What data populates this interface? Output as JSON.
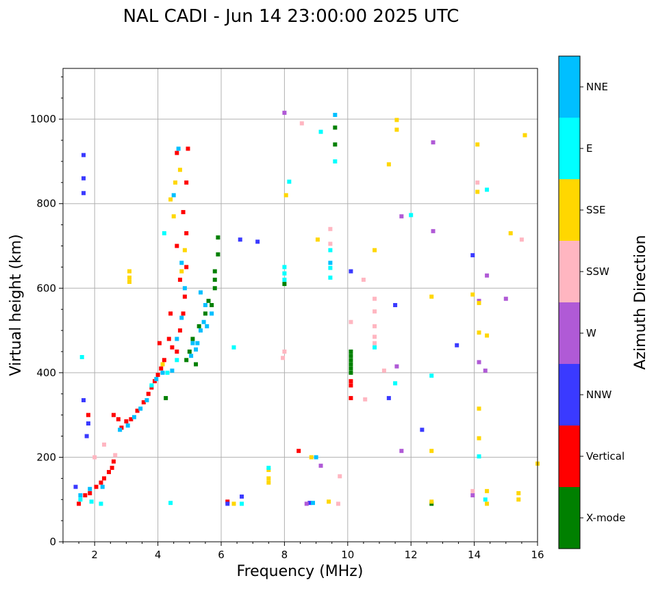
{
  "chart_data": {
    "type": "scatter",
    "title": "NAL CADI - Jun 14 23:00:00 2025 UTC",
    "xlabel": "Frequency (MHz)",
    "ylabel": "Virtual height (km)",
    "xlim": [
      1,
      16
    ],
    "ylim": [
      0,
      1120
    ],
    "xticks": [
      2,
      4,
      6,
      8,
      10,
      12,
      14,
      16
    ],
    "yticks": [
      0,
      200,
      400,
      600,
      800,
      1000
    ],
    "grid": true,
    "colorbar": {
      "label": "Azimuth Direction",
      "position": "right",
      "categories": [
        "X-mode",
        "Vertical",
        "NNW",
        "W",
        "SSW",
        "SSE",
        "E",
        "NNE"
      ],
      "colors": [
        "#008000",
        "#ff0000",
        "#3a3aff",
        "#b05ad6",
        "#ffb6c1",
        "#ffd700",
        "#00ffff",
        "#00bfff"
      ]
    },
    "series": [
      {
        "name": "X-mode",
        "points": [
          [
            10.1,
            450
          ],
          [
            10.1,
            440
          ],
          [
            10.1,
            430
          ],
          [
            10.1,
            420
          ],
          [
            10.1,
            410
          ],
          [
            10.1,
            400
          ],
          [
            12.65,
            90
          ],
          [
            5.9,
            720
          ],
          [
            5.9,
            680
          ],
          [
            5.8,
            640
          ],
          [
            5.8,
            600
          ],
          [
            5.6,
            570
          ],
          [
            5.5,
            540
          ],
          [
            5.3,
            510
          ],
          [
            5.1,
            480
          ],
          [
            5.0,
            450
          ],
          [
            4.9,
            430
          ],
          [
            5.2,
            420
          ],
          [
            5.7,
            560
          ],
          [
            5.8,
            620
          ],
          [
            9.6,
            980
          ],
          [
            9.6,
            940
          ],
          [
            8.0,
            610
          ],
          [
            4.25,
            340
          ]
        ]
      },
      {
        "name": "Vertical",
        "points": [
          [
            1.5,
            90
          ],
          [
            1.7,
            110
          ],
          [
            1.85,
            115
          ],
          [
            2.05,
            130
          ],
          [
            2.2,
            140
          ],
          [
            2.3,
            150
          ],
          [
            2.45,
            165
          ],
          [
            2.55,
            175
          ],
          [
            2.6,
            190
          ],
          [
            2.6,
            300
          ],
          [
            2.75,
            290
          ],
          [
            2.85,
            270
          ],
          [
            3.0,
            285
          ],
          [
            3.15,
            290
          ],
          [
            3.35,
            310
          ],
          [
            3.55,
            330
          ],
          [
            3.7,
            350
          ],
          [
            3.8,
            365
          ],
          [
            3.9,
            380
          ],
          [
            4.0,
            395
          ],
          [
            4.1,
            410
          ],
          [
            4.2,
            430
          ],
          [
            4.05,
            470
          ],
          [
            4.35,
            480
          ],
          [
            4.45,
            460
          ],
          [
            4.6,
            450
          ],
          [
            4.7,
            500
          ],
          [
            4.8,
            540
          ],
          [
            4.85,
            580
          ],
          [
            4.7,
            620
          ],
          [
            4.9,
            650
          ],
          [
            4.6,
            700
          ],
          [
            4.9,
            730
          ],
          [
            4.8,
            780
          ],
          [
            4.9,
            850
          ],
          [
            4.95,
            930
          ],
          [
            4.6,
            920
          ],
          [
            10.1,
            380
          ],
          [
            10.1,
            340
          ],
          [
            10.1,
            370
          ],
          [
            6.2,
            95
          ],
          [
            8.45,
            215
          ],
          [
            1.8,
            300
          ],
          [
            4.4,
            540
          ]
        ]
      },
      {
        "name": "NNW",
        "points": [
          [
            1.65,
            915
          ],
          [
            1.65,
            860
          ],
          [
            1.65,
            825
          ],
          [
            1.65,
            335
          ],
          [
            1.8,
            280
          ],
          [
            1.75,
            250
          ],
          [
            6.6,
            715
          ],
          [
            6.65,
            107
          ],
          [
            6.2,
            90
          ],
          [
            10.1,
            640
          ],
          [
            11.5,
            560
          ],
          [
            11.3,
            340
          ],
          [
            12.35,
            265
          ],
          [
            13.45,
            465
          ],
          [
            13.95,
            678
          ],
          [
            8.8,
            92
          ],
          [
            7.15,
            710
          ],
          [
            1.4,
            130
          ]
        ]
      },
      {
        "name": "W",
        "points": [
          [
            11.7,
            770
          ],
          [
            12.7,
            945
          ],
          [
            12.7,
            735
          ],
          [
            11.7,
            215
          ],
          [
            11.55,
            415
          ],
          [
            14.15,
            570
          ],
          [
            14.15,
            425
          ],
          [
            14.35,
            405
          ],
          [
            14.4,
            630
          ],
          [
            15.0,
            575
          ],
          [
            13.95,
            110
          ],
          [
            8.7,
            90
          ],
          [
            9.15,
            180
          ],
          [
            8.0,
            1015
          ]
        ]
      },
      {
        "name": "SSW",
        "points": [
          [
            10.85,
            575
          ],
          [
            10.85,
            545
          ],
          [
            10.85,
            510
          ],
          [
            10.85,
            485
          ],
          [
            10.85,
            470
          ],
          [
            10.5,
            620
          ],
          [
            10.1,
            520
          ],
          [
            10.55,
            337
          ],
          [
            11.15,
            405
          ],
          [
            9.45,
            740
          ],
          [
            9.45,
            705
          ],
          [
            8.55,
            990
          ],
          [
            8.0,
            450
          ],
          [
            7.95,
            435
          ],
          [
            9.75,
            155
          ],
          [
            14.1,
            850
          ],
          [
            15.5,
            715
          ],
          [
            13.95,
            120
          ],
          [
            2.0,
            200
          ],
          [
            2.3,
            230
          ],
          [
            2.65,
            205
          ],
          [
            9.7,
            90
          ]
        ]
      },
      {
        "name": "SSE",
        "points": [
          [
            3.1,
            640
          ],
          [
            3.1,
            625
          ],
          [
            3.1,
            615
          ],
          [
            4.4,
            810
          ],
          [
            4.5,
            770
          ],
          [
            4.55,
            850
          ],
          [
            4.7,
            880
          ],
          [
            4.75,
            640
          ],
          [
            4.85,
            690
          ],
          [
            7.5,
            150
          ],
          [
            7.5,
            170
          ],
          [
            7.5,
            140
          ],
          [
            8.05,
            820
          ],
          [
            9.05,
            715
          ],
          [
            10.85,
            690
          ],
          [
            11.3,
            893
          ],
          [
            11.55,
            975
          ],
          [
            11.55,
            998
          ],
          [
            12.65,
            580
          ],
          [
            12.65,
            215
          ],
          [
            12.65,
            95
          ],
          [
            14.1,
            940
          ],
          [
            14.1,
            828
          ],
          [
            14.15,
            565
          ],
          [
            14.15,
            495
          ],
          [
            14.15,
            315
          ],
          [
            14.15,
            245
          ],
          [
            14.4,
            488
          ],
          [
            14.4,
            120
          ],
          [
            14.4,
            90
          ],
          [
            15.15,
            730
          ],
          [
            15.6,
            962
          ],
          [
            15.4,
            115
          ],
          [
            15.4,
            100
          ],
          [
            16.0,
            185
          ],
          [
            6.4,
            90
          ],
          [
            8.85,
            200
          ],
          [
            9.4,
            95
          ],
          [
            13.95,
            585
          ],
          [
            4.15,
            420
          ]
        ]
      },
      {
        "name": "E",
        "points": [
          [
            4.2,
            730
          ],
          [
            4.4,
            92
          ],
          [
            6.4,
            460
          ],
          [
            6.65,
            90
          ],
          [
            7.5,
            175
          ],
          [
            8.0,
            650
          ],
          [
            8.0,
            635
          ],
          [
            8.0,
            620
          ],
          [
            8.15,
            852
          ],
          [
            9.15,
            970
          ],
          [
            9.45,
            648
          ],
          [
            9.45,
            625
          ],
          [
            9.45,
            690
          ],
          [
            9.6,
            900
          ],
          [
            10.85,
            460
          ],
          [
            11.5,
            375
          ],
          [
            12.0,
            773
          ],
          [
            12.65,
            393
          ],
          [
            14.15,
            202
          ],
          [
            14.4,
            833
          ],
          [
            14.35,
            100
          ],
          [
            1.6,
            437
          ],
          [
            1.55,
            100
          ],
          [
            1.9,
            95
          ],
          [
            2.2,
            90
          ],
          [
            3.8,
            370
          ],
          [
            4.3,
            400
          ],
          [
            4.6,
            430
          ]
        ]
      },
      {
        "name": "NNE",
        "points": [
          [
            1.55,
            110
          ],
          [
            1.85,
            125
          ],
          [
            2.25,
            130
          ],
          [
            2.8,
            265
          ],
          [
            3.05,
            275
          ],
          [
            3.25,
            295
          ],
          [
            3.45,
            315
          ],
          [
            3.65,
            335
          ],
          [
            3.95,
            385
          ],
          [
            4.15,
            400
          ],
          [
            4.45,
            405
          ],
          [
            4.6,
            480
          ],
          [
            4.75,
            530
          ],
          [
            4.85,
            600
          ],
          [
            4.75,
            660
          ],
          [
            4.5,
            820
          ],
          [
            4.65,
            930
          ],
          [
            5.1,
            470
          ],
          [
            5.25,
            470
          ],
          [
            5.35,
            500
          ],
          [
            5.45,
            520
          ],
          [
            5.5,
            560
          ],
          [
            5.35,
            590
          ],
          [
            5.2,
            455
          ],
          [
            5.05,
            440
          ],
          [
            5.55,
            510
          ],
          [
            5.7,
            540
          ],
          [
            8.9,
            92
          ],
          [
            9.0,
            200
          ],
          [
            9.45,
            660
          ],
          [
            9.6,
            1010
          ]
        ]
      }
    ]
  }
}
